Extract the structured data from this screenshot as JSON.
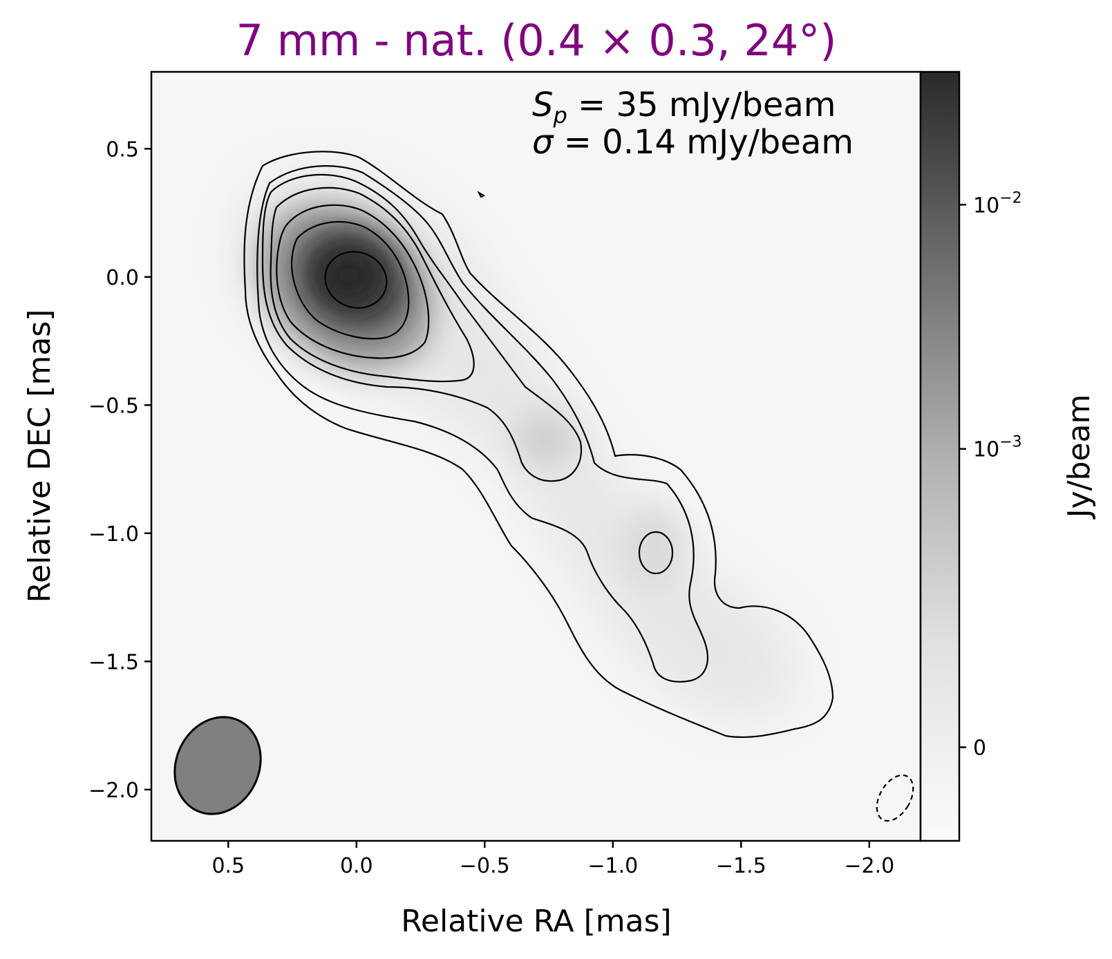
{
  "chart_data": {
    "type": "heatmap",
    "title": "7 mm - nat. (0.4 × 0.3, 24°)",
    "title_color": "#800080",
    "xlabel": "Relative RA [mas]",
    "ylabel": "Relative DEC [mas]",
    "colorbar_label": "Jy/beam",
    "colormap": "greys",
    "xlim": [
      0.8,
      -2.2
    ],
    "ylim": [
      -2.2,
      0.8
    ],
    "x_ticks": [
      0.5,
      0.0,
      -0.5,
      -1.0,
      -1.5,
      -2.0
    ],
    "x_tick_labels": [
      "0.5",
      "0.0",
      "−0.5",
      "−1.0",
      "−1.5",
      "−2.0"
    ],
    "y_ticks": [
      0.5,
      0.0,
      -0.5,
      -1.0,
      -1.5,
      -2.0
    ],
    "y_tick_labels": [
      "0.5",
      "0.0",
      "−0.5",
      "−1.0",
      "−1.5",
      "−2.0"
    ],
    "colorbar_ticks": [
      {
        "value": 0.01,
        "base": "10",
        "exp": "−2"
      },
      {
        "value": 0.001,
        "base": "10",
        "exp": "−3"
      },
      {
        "value": 0,
        "base": "0",
        "exp": ""
      }
    ],
    "annotations": {
      "peak": {
        "symbol": "S",
        "subscript": "p",
        "text": " = 35 mJy/beam"
      },
      "rms": {
        "symbol": "σ",
        "subscript": "",
        "text": " = 0.14 mJy/beam"
      }
    },
    "peak_flux_mJy_per_beam": 35,
    "rms_mJy_per_beam": 0.14,
    "beam": {
      "major_mas": 0.4,
      "minor_mas": 0.3,
      "pa_deg": 24,
      "center": [
        0.53,
        -1.87
      ],
      "fill": "#808080"
    },
    "components": [
      {
        "x": 0.0,
        "y": 0.03,
        "brightness": 0.92
      },
      {
        "x": -0.8,
        "y": -0.63,
        "brightness": 0.35
      },
      {
        "x": -1.2,
        "y": -1.05,
        "brightness": 0.2
      },
      {
        "x": -1.55,
        "y": -1.5,
        "brightness": 0.06
      }
    ],
    "negative_contour_center": [
      -2.13,
      -2.04
    ]
  }
}
